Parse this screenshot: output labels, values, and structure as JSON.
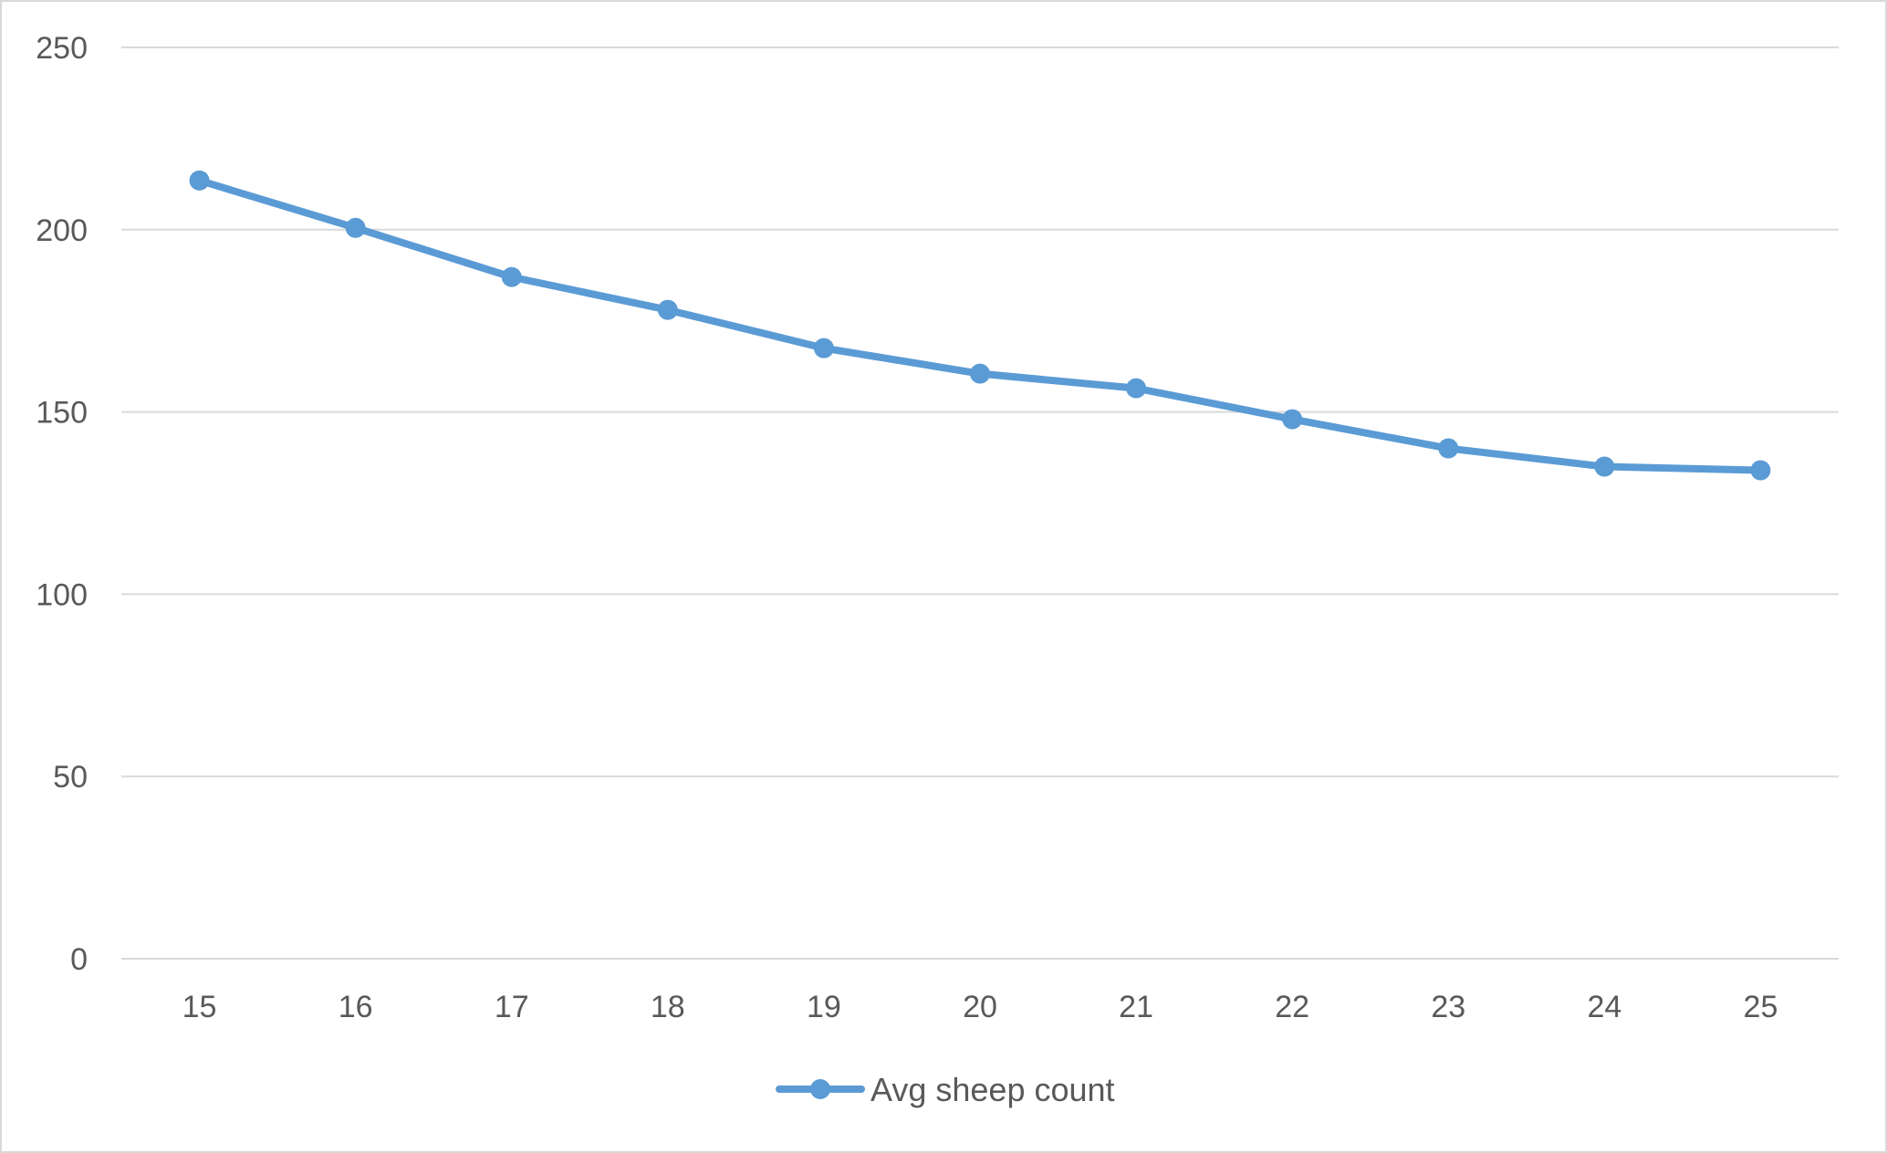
{
  "chart_data": {
    "type": "line",
    "title": "",
    "xlabel": "",
    "ylabel": "",
    "categories": [
      "15",
      "16",
      "17",
      "18",
      "19",
      "20",
      "21",
      "22",
      "23",
      "24",
      "25"
    ],
    "series": [
      {
        "name": "Avg sheep count",
        "values": [
          213.5,
          200.5,
          187,
          178,
          167.5,
          160.5,
          156.5,
          148,
          140,
          135,
          134
        ],
        "color": "#5b9bd5",
        "marker": "circle"
      }
    ],
    "ylim": [
      0,
      250
    ],
    "yticks": [
      "0",
      "50",
      "100",
      "150",
      "200",
      "250"
    ],
    "grid": "horizontal",
    "legend_position": "bottom"
  }
}
